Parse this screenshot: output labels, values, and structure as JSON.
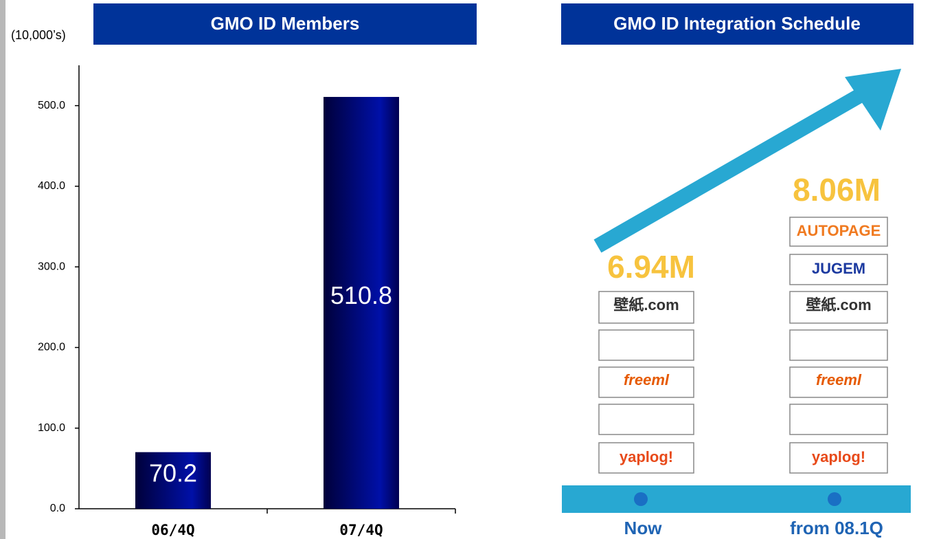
{
  "chart_data": {
    "type": "bar",
    "title": "GMO ID Members",
    "unit_label": "(10,000’s)",
    "categories": [
      "06/4Q",
      "07/4Q"
    ],
    "values": [
      70.2,
      510.8
    ],
    "color": "#000c80",
    "ylim": [
      0,
      550
    ],
    "yticks": [
      {
        "value": 0,
        "label": "0.0"
      },
      {
        "value": 100,
        "label": "100.0"
      },
      {
        "value": 200,
        "label": "200.0"
      },
      {
        "value": 300,
        "label": "300.0"
      },
      {
        "value": 400,
        "label": "400.0"
      },
      {
        "value": 500,
        "label": "500.0"
      }
    ],
    "grid": false
  },
  "schedule": {
    "title": "GMO ID Integration Schedule",
    "now": {
      "label": "Now",
      "total": "6.94M",
      "logos": [
        "壁紙.com",
        "freeml",
        "yaplog!"
      ]
    },
    "next": {
      "label": "from 08.1Q",
      "total": "8.06M",
      "logos": [
        "AUTOPAGE",
        "JUGEM",
        "壁紙.com",
        "freeml",
        "yaplog!"
      ]
    }
  }
}
